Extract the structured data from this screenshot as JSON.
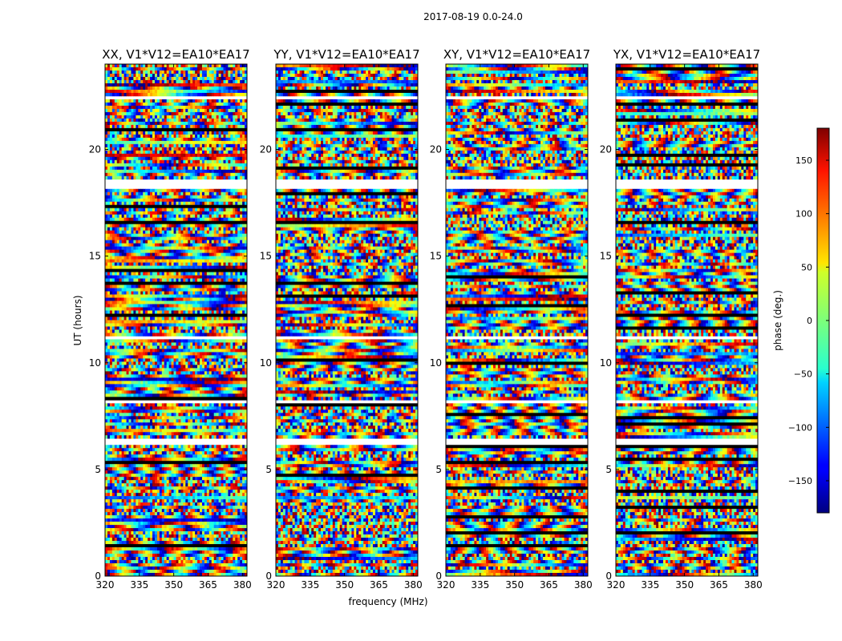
{
  "figure_title": "2017-08-19 0.0-24.0",
  "chart_data": {
    "type": "heatmap",
    "title": "2017-08-19 0.0-24.0",
    "xlabel": "frequency (MHz)",
    "ylabel": "UT (hours)",
    "xlim": [
      320,
      382
    ],
    "ylim": [
      0,
      24
    ],
    "xticks": [
      "320",
      "335",
      "350",
      "365",
      "380"
    ],
    "xtick_values": [
      320,
      335,
      350,
      365,
      380
    ],
    "yticks": [
      "0",
      "5",
      "10",
      "15",
      "20"
    ],
    "ytick_values": [
      0,
      5,
      10,
      15,
      20
    ],
    "colorbar": {
      "label": "phase (deg.)",
      "range": [
        -180,
        180
      ],
      "ticks": [
        "150",
        "100",
        "50",
        "0",
        "−50",
        "−100",
        "−150"
      ],
      "tick_values": [
        150,
        100,
        50,
        0,
        -50,
        -100,
        -150
      ],
      "colormap": "jet"
    },
    "panels": [
      {
        "title": "XX, V1*V12=EA10*EA17",
        "polarization": "XX",
        "seed": 11
      },
      {
        "title": "YY, V1*V12=EA10*EA17",
        "polarization": "YY",
        "seed": 23
      },
      {
        "title": "XY, V1*V12=EA10*EA17",
        "polarization": "XY",
        "seed": 37
      },
      {
        "title": "YX, V1*V12=EA10*EA17",
        "polarization": "YX",
        "seed": 41
      }
    ],
    "flagged_time_ranges_hours": [
      [
        18.1,
        18.6
      ],
      [
        6.2,
        6.5
      ],
      [
        11.1,
        11.3
      ],
      [
        8.1,
        8.3
      ],
      [
        17.5,
        17.6
      ],
      [
        22.3,
        22.5
      ]
    ]
  },
  "colors": {
    "frame": "#000000",
    "background": "#ffffff"
  }
}
